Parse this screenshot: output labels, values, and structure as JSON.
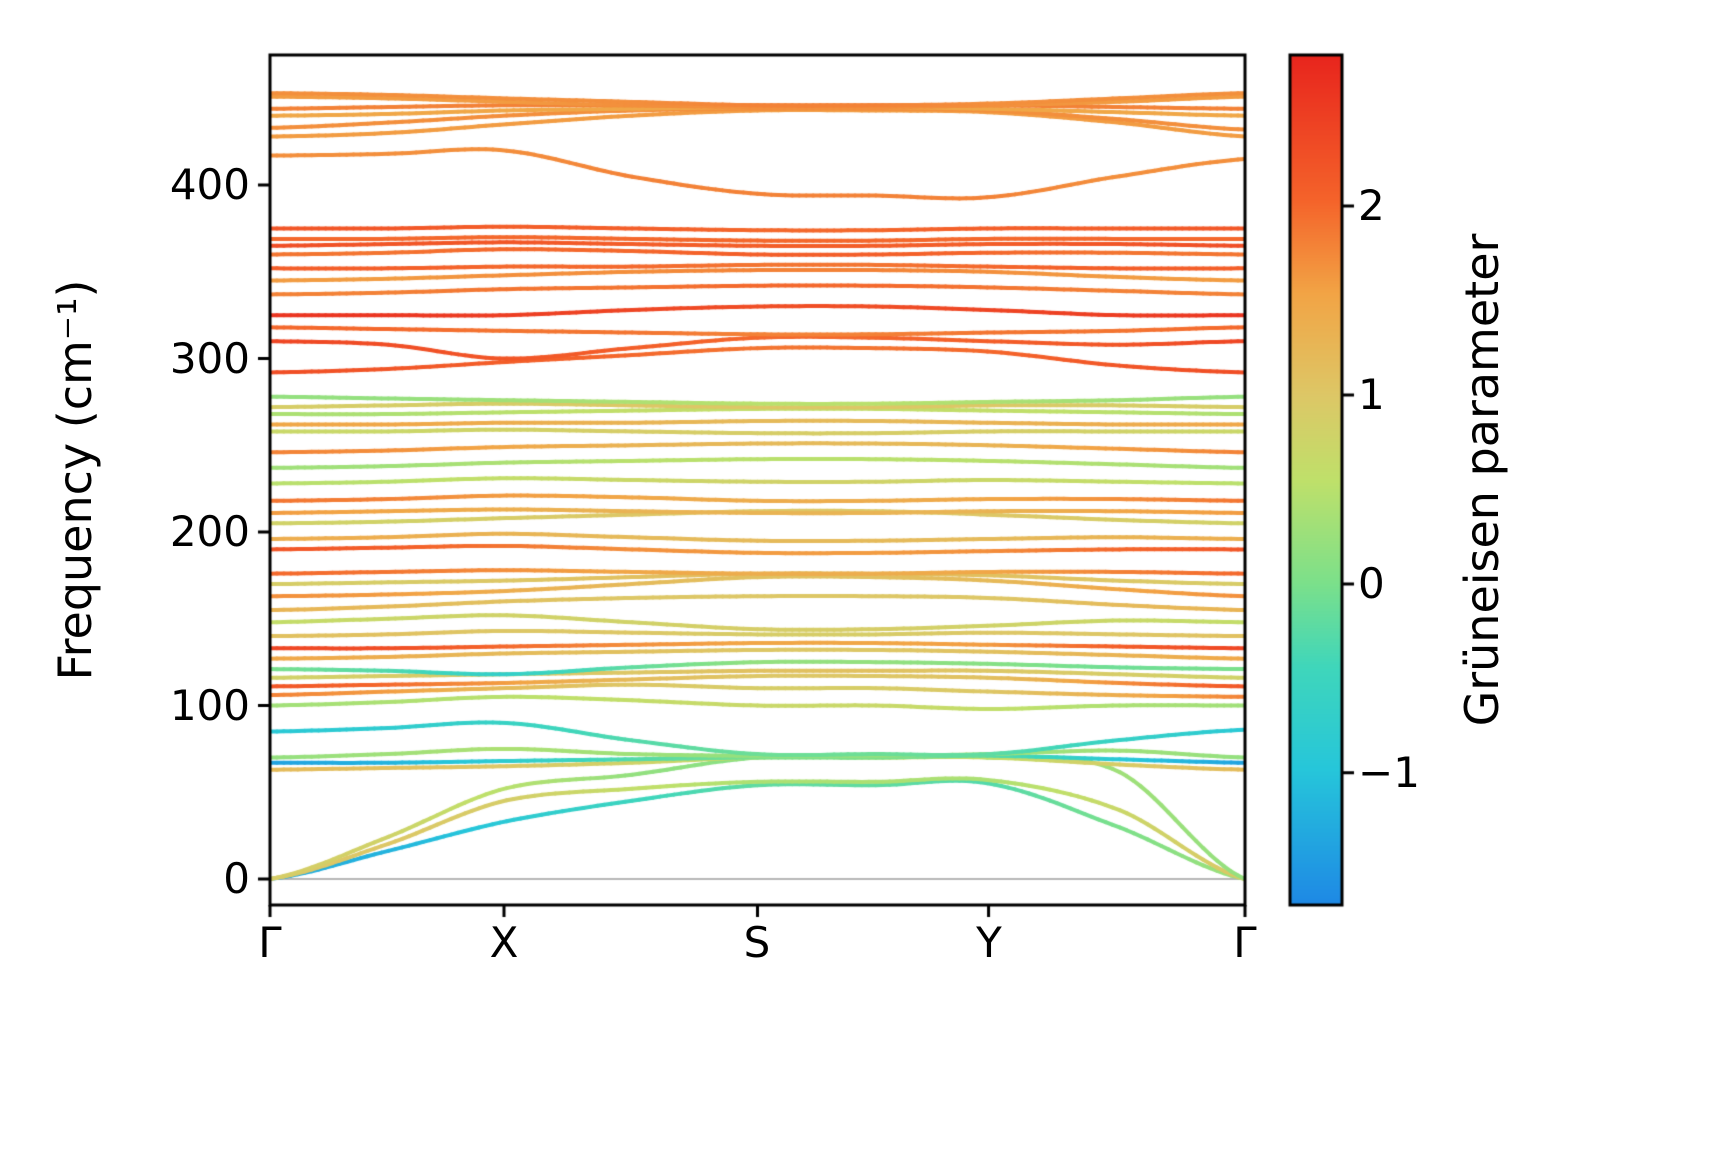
{
  "figure": {
    "background": "#ffffff"
  },
  "chart_data": {
    "type": "line",
    "title": "",
    "xlabel": "",
    "ylabel": "Frequency (cm⁻¹)",
    "x_tick_labels": [
      "Γ",
      "X",
      "S",
      "Y",
      "Γ"
    ],
    "x_tick_positions": [
      0,
      0.24,
      0.5,
      0.737,
      1.0
    ],
    "ylim": [
      -15,
      475
    ],
    "yticks": [
      0,
      100,
      200,
      300,
      400
    ],
    "ytick_labels": [
      "0",
      "100",
      "200",
      "300",
      "400"
    ],
    "zero_line": 0,
    "grid": false,
    "colorbar": {
      "label": "Grüneisen parameter",
      "vmin": -1.7,
      "vmax": 2.8,
      "ticks": [
        -1,
        0,
        1,
        2
      ],
      "tick_labels": [
        "−1",
        "0",
        "1",
        "2"
      ],
      "colormap_stops": [
        [
          0.0,
          "#1e88e5"
        ],
        [
          0.16,
          "#26c6da"
        ],
        [
          0.28,
          "#3fd6bb"
        ],
        [
          0.38,
          "#7ce08a"
        ],
        [
          0.5,
          "#bfe06a"
        ],
        [
          0.6,
          "#ddc766"
        ],
        [
          0.72,
          "#f2a445"
        ],
        [
          0.83,
          "#f4632a"
        ],
        [
          1.0,
          "#e8251d"
        ]
      ]
    },
    "x_samples": [
      0,
      0.12,
      0.24,
      0.37,
      0.5,
      0.62,
      0.737,
      0.87,
      1.0
    ],
    "bands": [
      {
        "f": [
          0,
          16,
          33,
          45,
          54,
          54,
          55,
          30,
          0
        ],
        "g": [
          -1.3,
          -1.2,
          -0.9,
          -0.5,
          -0.2,
          -0.2,
          -0.3,
          0,
          0.3
        ]
      },
      {
        "f": [
          0,
          20,
          45,
          52,
          56,
          56,
          57,
          40,
          0
        ],
        "g": [
          1,
          1,
          0.9,
          0.6,
          0.4,
          0.4,
          0.4,
          0.7,
          1
        ]
      },
      {
        "f": [
          0,
          24,
          52,
          60,
          70,
          70,
          70,
          62,
          0
        ],
        "g": [
          0.9,
          0.8,
          0.5,
          0.2,
          0.1,
          0.1,
          0.1,
          0.3,
          0.2
        ]
      },
      {
        "f": [
          63,
          64,
          65,
          67,
          70,
          70,
          70,
          66,
          63
        ],
        "g": [
          1.2,
          1.1,
          1,
          0.8,
          0.6,
          0.6,
          0.6,
          0.9,
          1.2
        ]
      },
      {
        "f": [
          67,
          67,
          68,
          69,
          70,
          70,
          71,
          69,
          67
        ],
        "g": [
          -1.4,
          -1.2,
          -0.8,
          -0.3,
          0,
          0,
          -0.2,
          -0.9,
          -1.4
        ]
      },
      {
        "f": [
          70,
          72,
          75,
          72,
          71,
          71,
          72,
          74,
          70
        ],
        "g": [
          0.2,
          0.3,
          0.4,
          0.3,
          0.2,
          0.2,
          0.3,
          0.3,
          0.2
        ]
      },
      {
        "f": [
          85,
          87,
          90,
          80,
          72,
          72,
          72,
          80,
          86
        ],
        "g": [
          -0.9,
          -0.8,
          -0.6,
          -0.3,
          -0.1,
          -0.1,
          -0.2,
          -0.6,
          -0.9
        ]
      },
      {
        "f": [
          100,
          102,
          105,
          103,
          100,
          100,
          98,
          100,
          100
        ],
        "g": [
          0.3,
          0.4,
          0.5,
          0.6,
          0.7,
          0.7,
          0.6,
          0.4,
          0.3
        ]
      },
      {
        "f": [
          106,
          108,
          110,
          112,
          110,
          110,
          108,
          106,
          105
        ],
        "g": [
          1.8,
          1.6,
          1.2,
          1,
          0.9,
          0.9,
          1,
          1.4,
          1.8
        ]
      },
      {
        "f": [
          111,
          112,
          113,
          115,
          117,
          117,
          116,
          113,
          111
        ],
        "g": [
          2.2,
          2,
          1.6,
          1.2,
          1,
          1,
          1.1,
          1.7,
          2.2
        ]
      },
      {
        "f": [
          116,
          117,
          118,
          119,
          120,
          120,
          120,
          118,
          116
        ],
        "g": [
          0.8,
          0.9,
          1,
          1,
          1.1,
          1.1,
          1,
          0.9,
          0.8
        ]
      },
      {
        "f": [
          121,
          120,
          118,
          122,
          125,
          125,
          124,
          122,
          121
        ],
        "g": [
          0,
          -0.3,
          -0.7,
          -0.2,
          0.2,
          0.2,
          0.1,
          -0.1,
          0
        ]
      },
      {
        "f": [
          127,
          128,
          130,
          131,
          132,
          132,
          131,
          129,
          127
        ],
        "g": [
          1.5,
          1.4,
          1.2,
          1.1,
          1,
          1,
          1.1,
          1.3,
          1.5
        ]
      },
      {
        "f": [
          133,
          133,
          134,
          135,
          136,
          136,
          135,
          134,
          133
        ],
        "g": [
          2.4,
          2.3,
          2,
          1.7,
          1.5,
          1.5,
          1.6,
          2.1,
          2.4
        ]
      },
      {
        "f": [
          140,
          141,
          143,
          142,
          141,
          141,
          142,
          141,
          140
        ],
        "g": [
          1.1,
          1.1,
          1,
          1,
          0.9,
          0.9,
          1,
          1,
          1.1
        ]
      },
      {
        "f": [
          148,
          150,
          152,
          148,
          144,
          144,
          146,
          149,
          148
        ],
        "g": [
          0.6,
          0.7,
          0.8,
          0.8,
          0.9,
          0.9,
          0.8,
          0.7,
          0.6
        ]
      },
      {
        "f": [
          155,
          157,
          160,
          162,
          163,
          163,
          162,
          158,
          155
        ],
        "g": [
          1.3,
          1.2,
          1.1,
          1,
          1,
          1,
          1,
          1.2,
          1.3
        ]
      },
      {
        "f": [
          163,
          164,
          166,
          170,
          174,
          174,
          172,
          167,
          163
        ],
        "g": [
          1.7,
          1.6,
          1.4,
          1.2,
          1.1,
          1.1,
          1.2,
          1.5,
          1.7
        ]
      },
      {
        "f": [
          170,
          171,
          172,
          174,
          176,
          176,
          175,
          172,
          170
        ],
        "g": [
          0.9,
          0.9,
          1,
          1.1,
          1.2,
          1.2,
          1.1,
          1,
          0.9
        ]
      },
      {
        "f": [
          176,
          177,
          178,
          177,
          176,
          176,
          177,
          177,
          176
        ],
        "g": [
          2,
          1.9,
          1.7,
          1.5,
          1.4,
          1.4,
          1.5,
          1.8,
          2
        ]
      },
      {
        "f": [
          190,
          191,
          192,
          190,
          188,
          188,
          189,
          190,
          190
        ],
        "g": [
          2.2,
          2.1,
          1.9,
          1.7,
          1.6,
          1.6,
          1.7,
          2,
          2.2
        ]
      },
      {
        "f": [
          196,
          197,
          199,
          197,
          195,
          195,
          196,
          197,
          196
        ],
        "g": [
          1.4,
          1.4,
          1.3,
          1.2,
          1.2,
          1.2,
          1.2,
          1.3,
          1.4
        ]
      },
      {
        "f": [
          205,
          206,
          208,
          210,
          212,
          212,
          210,
          207,
          205
        ],
        "g": [
          0.8,
          0.8,
          0.9,
          1,
          1,
          1,
          1,
          0.9,
          0.8
        ]
      },
      {
        "f": [
          211,
          212,
          213,
          212,
          211,
          211,
          212,
          212,
          211
        ],
        "g": [
          1.6,
          1.5,
          1.4,
          1.3,
          1.3,
          1.3,
          1.3,
          1.5,
          1.6
        ]
      },
      {
        "f": [
          218,
          219,
          221,
          220,
          218,
          218,
          219,
          219,
          218
        ],
        "g": [
          1.9,
          1.8,
          1.6,
          1.5,
          1.4,
          1.4,
          1.5,
          1.7,
          1.9
        ]
      },
      {
        "f": [
          228,
          229,
          231,
          230,
          229,
          229,
          230,
          229,
          228
        ],
        "g": [
          0.5,
          0.5,
          0.6,
          0.7,
          0.8,
          0.8,
          0.7,
          0.6,
          0.5
        ]
      },
      {
        "f": [
          237,
          238,
          240,
          241,
          242,
          242,
          241,
          239,
          237
        ],
        "g": [
          0.3,
          0.3,
          0.4,
          0.5,
          0.5,
          0.5,
          0.5,
          0.4,
          0.3
        ]
      },
      {
        "f": [
          246,
          247,
          249,
          250,
          251,
          251,
          250,
          248,
          246
        ],
        "g": [
          1.8,
          1.7,
          1.5,
          1.3,
          1.2,
          1.2,
          1.3,
          1.6,
          1.8
        ]
      },
      {
        "f": [
          258,
          258,
          259,
          258,
          257,
          257,
          258,
          258,
          258
        ],
        "g": [
          0.7,
          0.7,
          0.8,
          0.9,
          0.9,
          0.9,
          0.9,
          0.8,
          0.7
        ]
      },
      {
        "f": [
          262,
          262,
          263,
          263,
          264,
          264,
          263,
          262,
          262
        ],
        "g": [
          1.5,
          1.5,
          1.4,
          1.3,
          1.2,
          1.2,
          1.3,
          1.4,
          1.5
        ]
      },
      {
        "f": [
          268,
          268,
          269,
          270,
          271,
          271,
          270,
          269,
          268
        ],
        "g": [
          0.4,
          0.4,
          0.5,
          0.6,
          0.6,
          0.6,
          0.6,
          0.5,
          0.4
        ]
      },
      {
        "f": [
          272,
          273,
          274,
          273,
          272,
          272,
          273,
          273,
          272
        ],
        "g": [
          0.9,
          0.9,
          0.9,
          1,
          1,
          1,
          1,
          0.9,
          0.9
        ]
      },
      {
        "f": [
          278,
          277,
          276,
          275,
          274,
          274,
          275,
          276,
          278
        ],
        "g": [
          0.2,
          0.2,
          0.3,
          0.4,
          0.5,
          0.5,
          0.4,
          0.3,
          0.2
        ]
      },
      {
        "f": [
          292,
          294,
          298,
          302,
          306,
          306,
          304,
          296,
          292
        ],
        "g": [
          2.3,
          2.2,
          2.1,
          2,
          1.9,
          1.9,
          2,
          2.2,
          2.3
        ]
      },
      {
        "f": [
          310,
          308,
          300,
          306,
          312,
          312,
          310,
          308,
          310
        ],
        "g": [
          2.4,
          2.3,
          2.2,
          2.1,
          2,
          2,
          2.1,
          2.2,
          2.4
        ]
      },
      {
        "f": [
          318,
          317,
          316,
          315,
          314,
          314,
          315,
          316,
          318
        ],
        "g": [
          2,
          2,
          1.9,
          1.9,
          1.8,
          1.8,
          1.9,
          1.9,
          2
        ]
      },
      {
        "f": [
          325,
          325,
          325,
          328,
          330,
          330,
          328,
          325,
          325
        ],
        "g": [
          2.6,
          2.6,
          2.5,
          2.4,
          2.3,
          2.3,
          2.4,
          2.5,
          2.6
        ]
      },
      {
        "f": [
          337,
          338,
          340,
          341,
          342,
          342,
          341,
          339,
          337
        ],
        "g": [
          1.8,
          1.8,
          1.9,
          1.9,
          2,
          2,
          1.9,
          1.8,
          1.8
        ]
      },
      {
        "f": [
          345,
          346,
          348,
          350,
          351,
          351,
          350,
          347,
          345
        ],
        "g": [
          1.6,
          1.6,
          1.7,
          1.7,
          1.8,
          1.8,
          1.7,
          1.6,
          1.6
        ]
      },
      {
        "f": [
          352,
          352,
          353,
          353,
          354,
          354,
          353,
          352,
          352
        ],
        "g": [
          2.1,
          2.1,
          2,
          2,
          1.9,
          1.9,
          2,
          2.1,
          2.1
        ]
      },
      {
        "f": [
          360,
          361,
          363,
          362,
          360,
          360,
          361,
          361,
          360
        ],
        "g": [
          1.9,
          1.9,
          2,
          2,
          2.1,
          2.1,
          2,
          1.9,
          1.9
        ]
      },
      {
        "f": [
          365,
          366,
          367,
          366,
          365,
          365,
          366,
          366,
          365
        ],
        "g": [
          2.3,
          2.2,
          2.2,
          2.1,
          2.1,
          2.1,
          2.1,
          2.2,
          2.3
        ]
      },
      {
        "f": [
          369,
          369,
          370,
          369,
          368,
          368,
          369,
          369,
          369
        ],
        "g": [
          2,
          2,
          2,
          2,
          2,
          2,
          2,
          2,
          2
        ]
      },
      {
        "f": [
          375,
          375,
          376,
          375,
          374,
          374,
          375,
          375,
          375
        ],
        "g": [
          2.2,
          2.2,
          2.1,
          2.1,
          2,
          2,
          2.1,
          2.1,
          2.2
        ]
      },
      {
        "f": [
          417,
          418,
          420,
          405,
          395,
          394,
          393,
          405,
          415
        ],
        "g": [
          1.7,
          1.7,
          1.7,
          1.8,
          1.8,
          1.8,
          1.8,
          1.7,
          1.7
        ]
      },
      {
        "f": [
          428,
          430,
          435,
          440,
          443,
          443,
          442,
          436,
          428
        ],
        "g": [
          1.6,
          1.6,
          1.6,
          1.6,
          1.6,
          1.6,
          1.6,
          1.6,
          1.6
        ]
      },
      {
        "f": [
          433,
          436,
          440,
          443,
          444,
          444,
          443,
          438,
          432
        ],
        "g": [
          1.7,
          1.7,
          1.7,
          1.7,
          1.7,
          1.7,
          1.7,
          1.7,
          1.7
        ]
      },
      {
        "f": [
          440,
          441,
          443,
          444,
          445,
          445,
          444,
          442,
          440
        ],
        "g": [
          1.5,
          1.5,
          1.5,
          1.5,
          1.5,
          1.5,
          1.5,
          1.5,
          1.5
        ]
      },
      {
        "f": [
          444,
          445,
          446,
          446,
          446,
          446,
          446,
          445,
          444
        ],
        "g": [
          1.8,
          1.8,
          1.8,
          1.8,
          1.8,
          1.8,
          1.8,
          1.8,
          1.8
        ]
      },
      {
        "f": [
          451,
          450,
          448,
          446,
          445,
          445,
          446,
          448,
          451
        ],
        "g": [
          1.6,
          1.6,
          1.6,
          1.7,
          1.7,
          1.7,
          1.7,
          1.6,
          1.6
        ]
      },
      {
        "f": [
          453,
          452,
          450,
          448,
          446,
          446,
          447,
          450,
          453
        ],
        "g": [
          1.7,
          1.7,
          1.7,
          1.7,
          1.8,
          1.8,
          1.7,
          1.7,
          1.7
        ]
      }
    ]
  }
}
